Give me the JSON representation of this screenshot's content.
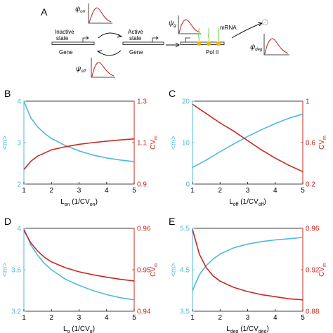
{
  "colors": {
    "m": "#4FB8DD",
    "cv": "#C8281E",
    "axis": "#111111"
  },
  "schematic": {
    "panel_label": "A",
    "inactive_label": "Inactive\nstate",
    "active_label": "Active\nstate",
    "gene_label": "Gene",
    "gene_label2": "Gene",
    "mrna_label": "mRNA",
    "pol_label": "Pol II",
    "psi_on": "ψ",
    "psi_on_sub": "on",
    "psi_off": "ψ",
    "psi_off_sub": "off",
    "psi_g": "ψ",
    "psi_g_sub": "g",
    "psi_deg": "ψ",
    "psi_deg_sub": "deg",
    "empty_set": "∅"
  },
  "chart_data": [
    {
      "panel": "B",
      "type": "line",
      "xlabel": "L",
      "xlabel_sub": "on",
      "xlabel_rest": " (1/CV",
      "xlabel_sub2": "on",
      "xlabel_end": ")",
      "x_ticks": [
        "1",
        "2",
        "3",
        "4",
        "5"
      ],
      "xlim": [
        1,
        5
      ],
      "left": {
        "label": "<m>",
        "ylim": [
          2,
          4
        ],
        "ticks": [
          "2",
          "3",
          "4"
        ]
      },
      "right": {
        "label": "CV",
        "label_sub": "m",
        "ylim": [
          0.9,
          1.3
        ],
        "ticks": [
          "0.9",
          "1.1",
          "1.3"
        ]
      },
      "series": [
        {
          "axis": "left",
          "x": [
            1,
            1.25,
            1.5,
            1.75,
            2,
            2.5,
            3,
            3.5,
            4,
            4.5,
            5
          ],
          "values": [
            4.0,
            3.6,
            3.38,
            3.22,
            3.1,
            2.93,
            2.8,
            2.7,
            2.63,
            2.58,
            2.54
          ]
        },
        {
          "axis": "right",
          "x": [
            1,
            1.25,
            1.5,
            1.75,
            2,
            2.5,
            3,
            3.5,
            4,
            4.5,
            5
          ],
          "values": [
            0.97,
            1.01,
            1.035,
            1.05,
            1.065,
            1.08,
            1.092,
            1.1,
            1.107,
            1.113,
            1.118
          ]
        }
      ]
    },
    {
      "panel": "C",
      "type": "line",
      "xlabel": "L",
      "xlabel_sub": "off",
      "xlabel_rest": " (1/CV",
      "xlabel_sub2": "off",
      "xlabel_end": ")",
      "x_ticks": [
        "1",
        "2",
        "3",
        "4",
        "5"
      ],
      "xlim": [
        1,
        5
      ],
      "left": {
        "label": "<m>",
        "ylim": [
          0,
          20
        ],
        "ticks": [
          "0",
          "10",
          "20"
        ]
      },
      "right": {
        "label": "CV",
        "label_sub": "m",
        "ylim": [
          0.2,
          1.0
        ],
        "ticks": [
          "0.2",
          "0.6",
          "1"
        ]
      },
      "series": [
        {
          "axis": "left",
          "x": [
            1,
            1.5,
            2,
            2.5,
            3,
            3.5,
            4,
            4.5,
            5
          ],
          "values": [
            4.0,
            5.8,
            7.8,
            9.7,
            11.5,
            13.1,
            14.6,
            15.9,
            16.9
          ]
        },
        {
          "axis": "right",
          "x": [
            1,
            1.5,
            2,
            2.5,
            3,
            3.5,
            4,
            4.5,
            5
          ],
          "values": [
            0.97,
            0.88,
            0.79,
            0.71,
            0.62,
            0.53,
            0.45,
            0.38,
            0.32
          ]
        }
      ]
    },
    {
      "panel": "D",
      "type": "line",
      "xlabel": "L",
      "xlabel_sub": "g",
      "xlabel_rest": " (1/CV",
      "xlabel_sub2": "g",
      "xlabel_end": ")",
      "x_ticks": [
        "1",
        "2",
        "3",
        "4",
        "5"
      ],
      "xlim": [
        1,
        5
      ],
      "left": {
        "label": "<m>",
        "ylim": [
          3.2,
          4.0
        ],
        "ticks": [
          "3.2",
          "3.6",
          "4"
        ]
      },
      "right": {
        "label": "CV",
        "label_sub": "m",
        "ylim": [
          0.94,
          0.96
        ],
        "ticks": [
          "0.94",
          "0.95",
          "0.96"
        ]
      },
      "series": [
        {
          "axis": "left",
          "x": [
            1,
            1.25,
            1.5,
            1.75,
            2,
            2.5,
            3,
            3.5,
            4,
            4.5,
            5
          ],
          "values": [
            4.0,
            3.84,
            3.74,
            3.66,
            3.6,
            3.51,
            3.45,
            3.4,
            3.36,
            3.33,
            3.31
          ]
        },
        {
          "axis": "right",
          "x": [
            1,
            1.25,
            1.5,
            1.75,
            2,
            2.5,
            3,
            3.5,
            4,
            4.5,
            5
          ],
          "values": [
            0.9595,
            0.9565,
            0.9545,
            0.953,
            0.9519,
            0.9505,
            0.9495,
            0.9488,
            0.9482,
            0.9477,
            0.9473
          ]
        }
      ]
    },
    {
      "panel": "E",
      "type": "line",
      "xlabel": "L",
      "xlabel_sub": "deg",
      "xlabel_rest": " (1/CV",
      "xlabel_sub2": "deg",
      "xlabel_end": ")",
      "x_ticks": [
        "1",
        "2",
        "3",
        "4",
        "5"
      ],
      "xlim": [
        1,
        5
      ],
      "left": {
        "label": "<m>",
        "ylim": [
          3.5,
          5.5
        ],
        "ticks": [
          "3.5",
          "4.5",
          "5.5"
        ]
      },
      "right": {
        "label": "CV",
        "label_sub": "m",
        "ylim": [
          0.88,
          0.96
        ],
        "ticks": [
          "0.88",
          "0.92",
          "0.96"
        ]
      },
      "series": [
        {
          "axis": "left",
          "x": [
            1,
            1.25,
            1.5,
            1.75,
            2,
            2.5,
            3,
            3.5,
            4,
            4.5,
            5
          ],
          "values": [
            4.0,
            4.38,
            4.6,
            4.76,
            4.88,
            5.03,
            5.12,
            5.18,
            5.22,
            5.25,
            5.28
          ]
        },
        {
          "axis": "right",
          "x": [
            1,
            1.25,
            1.5,
            1.75,
            2,
            2.5,
            3,
            3.5,
            4,
            4.5,
            5
          ],
          "values": [
            0.959,
            0.935,
            0.922,
            0.914,
            0.909,
            0.903,
            0.899,
            0.896,
            0.894,
            0.892,
            0.891
          ]
        }
      ]
    }
  ]
}
